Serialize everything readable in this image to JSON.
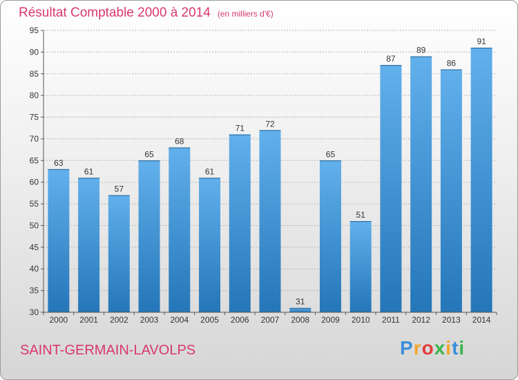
{
  "header": {
    "title": "Résultat Comptable 2000 à 2014",
    "unit": "(en milliers d'€)"
  },
  "footer": {
    "commune": "SAINT-GERMAIN-LAVOLPS",
    "logo_letters": [
      "P",
      "r",
      "o",
      "x",
      "i",
      "t",
      "i"
    ]
  },
  "colors": {
    "accent": "#d9376e",
    "bar_top": "#62b0ec",
    "bar_bottom": "#2476b8",
    "logo": [
      "#3a8fd8",
      "#f2a52a",
      "#e23c3c",
      "#3ab54a",
      "#f2a52a",
      "#3a8fd8",
      "#3ab54a"
    ]
  },
  "chart_data": {
    "type": "bar",
    "title": "Résultat Comptable 2000 à 2014",
    "categories": [
      "2000",
      "2001",
      "2002",
      "2003",
      "2004",
      "2005",
      "2006",
      "2007",
      "2008",
      "2009",
      "2010",
      "2011",
      "2012",
      "2013",
      "2014"
    ],
    "values": [
      63,
      61,
      57,
      65,
      68,
      61,
      71,
      72,
      31,
      65,
      51,
      87,
      89,
      86,
      91
    ],
    "ylim": [
      30,
      95
    ],
    "yticks": [
      30,
      35,
      40,
      45,
      50,
      55,
      60,
      65,
      70,
      75,
      80,
      85,
      90,
      95
    ],
    "grid": true,
    "data_labels": true
  }
}
